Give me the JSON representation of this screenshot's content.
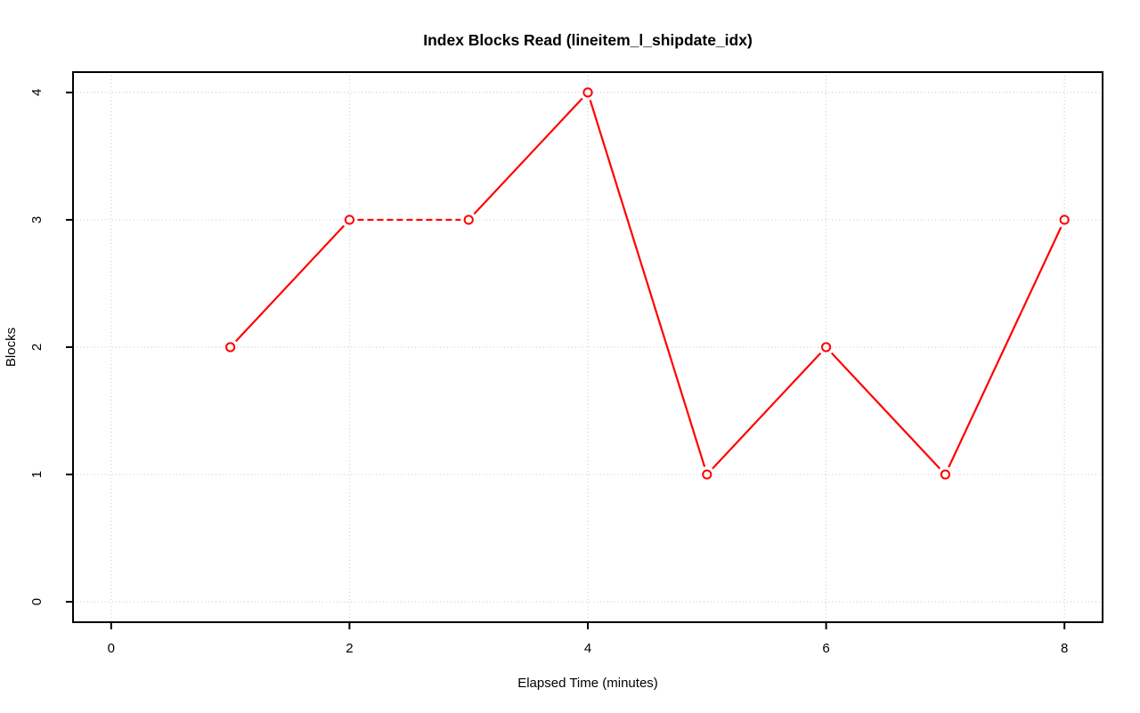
{
  "chart_data": {
    "type": "line",
    "title": "Index Blocks Read (lineitem_l_shipdate_idx)",
    "xlabel": "Elapsed Time (minutes)",
    "ylabel": "Blocks",
    "x": [
      1,
      2,
      3,
      4,
      5,
      6,
      7,
      8
    ],
    "values": [
      2,
      3,
      3,
      4,
      1,
      2,
      1,
      3
    ],
    "xlim": [
      0,
      8
    ],
    "ylim": [
      0,
      4
    ],
    "xticks": [
      0,
      2,
      4,
      6,
      8
    ],
    "yticks": [
      0,
      1,
      2,
      3,
      4
    ],
    "grid": true,
    "legend": "none",
    "style": {
      "line_color": "#ff0000",
      "marker": "open-circle",
      "marker_color": "#ff0000",
      "grid_color": "#d0d0d0",
      "axis_color": "#000000",
      "background_color": "#ffffff",
      "grid_linestyle": "dotted",
      "plot_type": "points-joined-with-gaps"
    }
  }
}
